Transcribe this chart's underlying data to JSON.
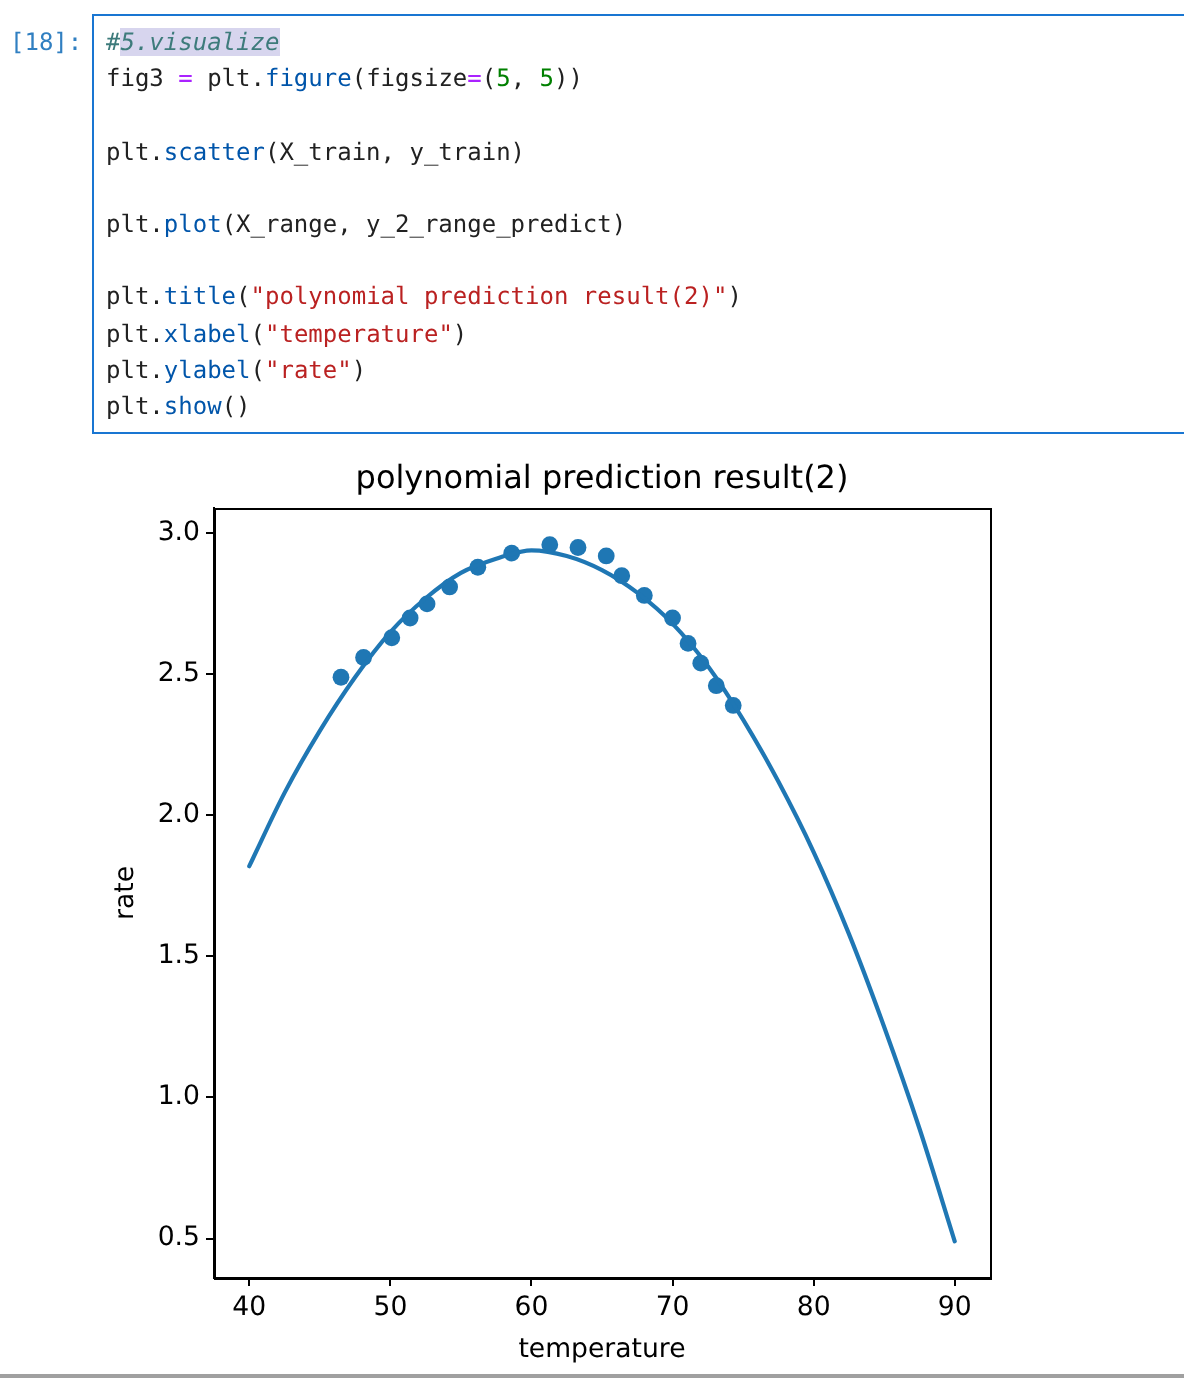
{
  "chart_data": {
    "type": "scatter",
    "title": "polynomial prediction result(2)",
    "xlabel": "temperature",
    "ylabel": "rate",
    "annotations": [
      "[18]:",
      "#5.visualize\nfig3 = plt.figure(figsize=(5, 5))\n\nplt.scatter(X_train, y_train)\n\nplt.plot(X_range, y_2_range_predict)\n\nplt.title(\"polynomial prediction result(2)\")\nplt.xlabel(\"temperature\")\nplt.ylabel(\"rate\")\nplt.show()"
    ],
    "xlim": [
      37.5,
      92.5
    ],
    "xticks": [
      40,
      50,
      60,
      70,
      80,
      90
    ],
    "ylim": [
      0.36,
      3.09
    ],
    "yticks": [
      0.5,
      {
        "value": 1,
        "label": "1.0"
      },
      1.5,
      {
        "value": 2,
        "label": "2.0"
      },
      2.5,
      {
        "value": 3,
        "label": "3.0"
      }
    ],
    "series": [
      {
        "type": "scatter",
        "color": "#1f77b4",
        "marker": "circle",
        "x": [
          46.5,
          48.1,
          50.1,
          51.4,
          52.6,
          54.2,
          56.2,
          58.6,
          61.3,
          63.3,
          65.3,
          66.4,
          68.0,
          70.0,
          71.1,
          72.0,
          73.1,
          74.3
        ],
        "values": [
          2.49,
          2.56,
          2.63,
          2.7,
          2.75,
          2.81,
          2.88,
          2.93,
          2.96,
          2.95,
          2.92,
          2.85,
          2.78,
          2.7,
          2.61,
          2.54,
          2.46,
          2.39
        ]
      },
      {
        "type": "line",
        "color": "#1f77b4",
        "marker": "none",
        "line_style": "solid",
        "x": [
          40,
          42.5,
          45,
          47.5,
          50,
          52.5,
          55,
          57.5,
          60,
          62.5,
          65,
          67.5,
          70,
          72.5,
          75,
          77.5,
          80,
          82.5,
          85,
          87.5,
          90
        ],
        "values": [
          1.82,
          2.08,
          2.3,
          2.49,
          2.65,
          2.77,
          2.86,
          2.91,
          2.94,
          2.92,
          2.87,
          2.79,
          2.68,
          2.53,
          2.34,
          2.12,
          1.87,
          1.58,
          1.25,
          0.89,
          0.49
        ]
      }
    ]
  }
}
